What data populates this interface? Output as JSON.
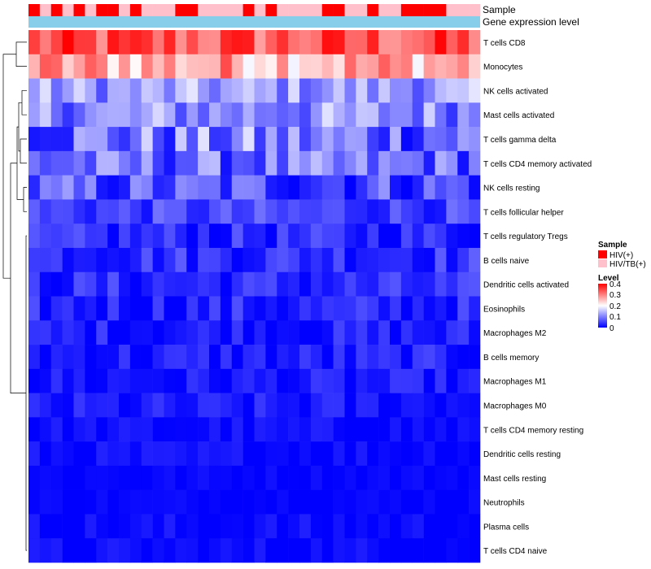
{
  "chart_data": {
    "type": "heatmap",
    "annotation_labels": [
      "Sample",
      "Gene expression level"
    ],
    "rows": [
      "T cells CD8",
      "Monocytes",
      "NK cells activated",
      "Mast cells activated",
      "T cells gamma delta",
      "T cells CD4 memory activated",
      "NK cells resting",
      "T cells follicular helper",
      "T cells regulatory  Tregs",
      "B cells naive",
      "Dendritic cells activated",
      "Eosinophils",
      "Macrophages M2",
      "B cells memory",
      "Macrophages M1",
      "Macrophages M0",
      "T cells CD4 memory resting",
      "Dendritic cells resting",
      "Mast cells resting",
      "Neutrophils",
      "Plasma cells",
      "T cells CD4 naive"
    ],
    "columns": 40,
    "sample_groups": [
      1,
      0,
      1,
      0,
      1,
      0,
      1,
      1,
      0,
      1,
      0,
      0,
      0,
      1,
      1,
      0,
      0,
      0,
      0,
      1,
      0,
      1,
      0,
      0,
      0,
      0,
      1,
      1,
      0,
      0,
      1,
      0,
      0,
      1,
      1,
      1,
      1,
      0,
      0,
      0
    ],
    "sample_legend": {
      "title": "Sample",
      "entries": [
        {
          "label": "HIV(+)",
          "color": "#ff0000"
        },
        {
          "label": "HIV/TB(+)",
          "color": "#ffc0cb"
        }
      ]
    },
    "gene_expression_color": "#87ceeb",
    "color_legend": {
      "title": "Level",
      "ticks": [
        "0.4",
        "0.3",
        "0.2",
        "0.1",
        "0"
      ],
      "range": [
        0,
        0.4
      ],
      "low_color": "#0000ff",
      "mid_color": "#ffffff",
      "high_color": "#ff0000"
    },
    "row_base_levels": [
      0.33,
      0.27,
      0.12,
      0.11,
      0.09,
      0.08,
      0.06,
      0.05,
      0.03,
      0.04,
      0.03,
      0.025,
      0.02,
      0.02,
      0.015,
      0.015,
      0.008,
      0.008,
      0.005,
      0.004,
      0.006,
      0.005
    ],
    "row_spread": [
      0.07,
      0.08,
      0.06,
      0.07,
      0.09,
      0.07,
      0.07,
      0.04,
      0.04,
      0.04,
      0.04,
      0.04,
      0.035,
      0.035,
      0.03,
      0.03,
      0.02,
      0.02,
      0.01,
      0.01,
      0.02,
      0.02
    ]
  }
}
